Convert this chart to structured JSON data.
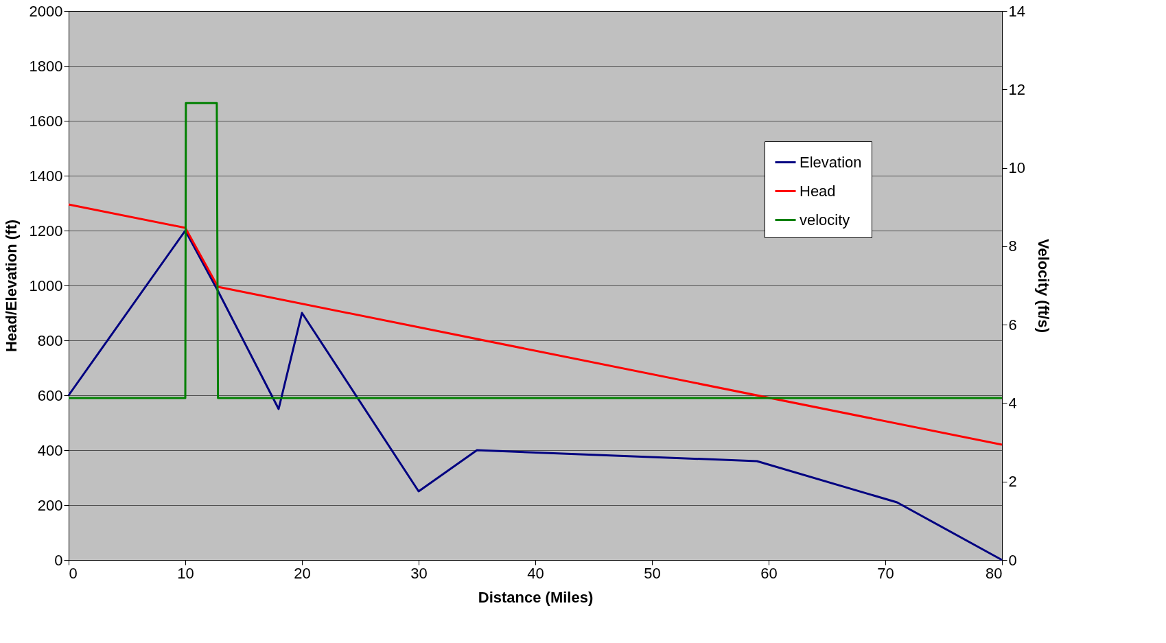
{
  "chart_data": {
    "type": "line",
    "xlabel": "Distance (Miles)",
    "ylabel": "Head/Elevation (ft)",
    "y2label": "Velocity (ft/s)",
    "xlim": [
      0,
      80
    ],
    "xticks": [
      0,
      10,
      20,
      30,
      40,
      50,
      60,
      70,
      80
    ],
    "ylim": [
      0,
      2000
    ],
    "yticks": [
      0,
      200,
      400,
      600,
      800,
      1000,
      1200,
      1400,
      1600,
      1800,
      2000
    ],
    "y2lim": [
      0,
      14
    ],
    "y2ticks": [
      0,
      2,
      4,
      6,
      8,
      10,
      12,
      14
    ],
    "grid": "y",
    "legend": "top right",
    "line_style": "solid",
    "series": [
      {
        "name": "Elevation",
        "color": "#000080",
        "x": [
          0,
          10,
          12.8,
          18,
          20,
          30,
          35,
          59,
          71,
          80
        ],
        "values": [
          600,
          1200,
          980,
          550,
          900,
          250,
          400,
          360,
          210,
          0
        ]
      },
      {
        "name": "Head",
        "color": "#ff0000",
        "x": [
          0,
          10,
          12.8,
          80
        ],
        "values": [
          1295,
          1210,
          995,
          420
        ]
      },
      {
        "name": "velocity",
        "color": "#008000",
        "axis": "y2",
        "x": [
          0,
          10,
          10.05,
          12.7,
          12.8,
          80
        ],
        "values": [
          4.13,
          4.13,
          11.65,
          11.65,
          4.13,
          4.13
        ]
      }
    ]
  }
}
